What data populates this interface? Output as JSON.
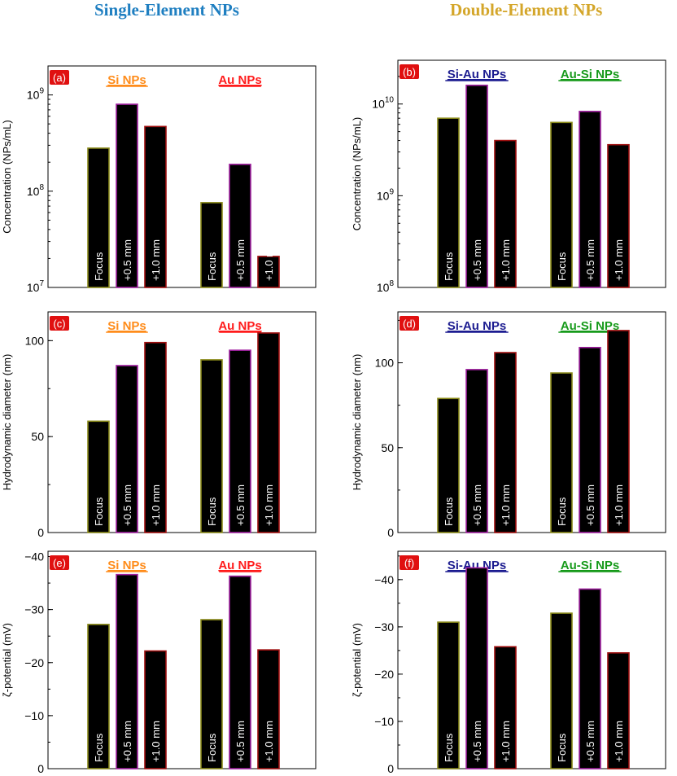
{
  "titles": {
    "left": "Single-Element NPs",
    "right": "Double-Element NPs"
  },
  "colors": {
    "title_left": "#1f7fc1",
    "title_right": "#d4a62a",
    "Si NPs": "#ff8c1a",
    "Au NPs": "#ff1a1a",
    "Si-Au NPs": "#1c1c90",
    "Au-Si NPs": "#169a1a",
    "bar_bottom": "#000000",
    "tag_bg": "#e01010"
  },
  "chart_data": [
    {
      "type": "bar",
      "panel": "(a)",
      "title": "",
      "xlabel": "",
      "ylabel": "Concentration (NPs/mL)",
      "yscale": "log",
      "ylim": [
        10000000,
        2000000000
      ],
      "yticks": [
        10000000,
        100000000,
        1000000000
      ],
      "yticklabels": [
        {
          "base": "10",
          "exp": "7"
        },
        {
          "base": "10",
          "exp": "8"
        },
        {
          "base": "10",
          "exp": "9"
        }
      ],
      "categories": [
        "Focus",
        "+0.5 mm",
        "+1.0 mm"
      ],
      "groups": [
        {
          "name": "Si NPs",
          "values": [
            280000000,
            800000000,
            470000000
          ]
        },
        {
          "name": "Au NPs",
          "values": [
            76000000,
            190000000,
            21000000
          ]
        }
      ]
    },
    {
      "type": "bar",
      "panel": "(b)",
      "title": "",
      "xlabel": "",
      "ylabel": "Concentration (NPs/mL)",
      "yscale": "log",
      "ylim": [
        100000000,
        30000000000
      ],
      "yticks": [
        100000000,
        1000000000,
        10000000000
      ],
      "yticklabels": [
        {
          "base": "10",
          "exp": "8"
        },
        {
          "base": "10",
          "exp": "9"
        },
        {
          "base": "10",
          "exp": "10"
        }
      ],
      "categories": [
        "Focus",
        "+0.5 mm",
        "+1.0 mm"
      ],
      "groups": [
        {
          "name": "Si-Au NPs",
          "values": [
            7000000000,
            16000000000,
            4000000000
          ]
        },
        {
          "name": "Au-Si NPs",
          "values": [
            6300000000,
            8300000000,
            3600000000
          ]
        }
      ]
    },
    {
      "type": "bar",
      "panel": "(c)",
      "title": "",
      "xlabel": "",
      "ylabel": "Hydrodynamic diameter (nm)",
      "yscale": "linear",
      "ylim": [
        0,
        115
      ],
      "yticks": [
        0,
        50,
        100
      ],
      "yticklabels": [
        "0",
        "50",
        "100"
      ],
      "categories": [
        "Focus",
        "+0.5 mm",
        "+1.0 mm"
      ],
      "groups": [
        {
          "name": "Si NPs",
          "values": [
            58,
            87,
            99
          ]
        },
        {
          "name": "Au NPs",
          "values": [
            90,
            95,
            104
          ]
        }
      ]
    },
    {
      "type": "bar",
      "panel": "(d)",
      "title": "",
      "xlabel": "",
      "ylabel": "Hydrodynamic diameter (nm)",
      "yscale": "linear",
      "ylim": [
        0,
        130
      ],
      "yticks": [
        0,
        50,
        100
      ],
      "yticklabels": [
        "0",
        "50",
        "100"
      ],
      "categories": [
        "Focus",
        "+0.5 mm",
        "+1.0 mm"
      ],
      "groups": [
        {
          "name": "Si-Au NPs",
          "values": [
            79,
            96,
            106
          ]
        },
        {
          "name": "Au-Si NPs",
          "values": [
            94,
            109,
            119
          ]
        }
      ]
    },
    {
      "type": "bar",
      "panel": "(e)",
      "title": "",
      "xlabel": "",
      "ylabel": "ζ-potential (mV)",
      "yscale": "linear",
      "ylim": [
        0,
        -41
      ],
      "yticks": [
        0,
        -10,
        -20,
        -30,
        -40
      ],
      "yticklabels": [
        "0",
        "−10",
        "−20",
        "−30",
        "−40"
      ],
      "categories": [
        "Focus",
        "+0.5 mm",
        "+1.0 mm"
      ],
      "groups": [
        {
          "name": "Si NPs",
          "values": [
            -27.2,
            -36.6,
            -22.2
          ]
        },
        {
          "name": "Au NPs",
          "values": [
            -28.1,
            -36.3,
            -22.4
          ]
        }
      ]
    },
    {
      "type": "bar",
      "panel": "(f)",
      "title": "",
      "xlabel": "",
      "ylabel": "ζ-potential (mV)",
      "yscale": "linear",
      "ylim": [
        0,
        -46
      ],
      "yticks": [
        0,
        -10,
        -20,
        -30,
        -40
      ],
      "yticklabels": [
        "0",
        "−10",
        "−20",
        "−30",
        "−40"
      ],
      "categories": [
        "Focus",
        "+0.5 mm",
        "+1.0 mm"
      ],
      "groups": [
        {
          "name": "Si-Au NPs",
          "values": [
            -31,
            -42.5,
            -25.8
          ]
        },
        {
          "name": "Au-Si NPs",
          "values": [
            -32.9,
            -38,
            -24.5
          ]
        }
      ]
    }
  ]
}
